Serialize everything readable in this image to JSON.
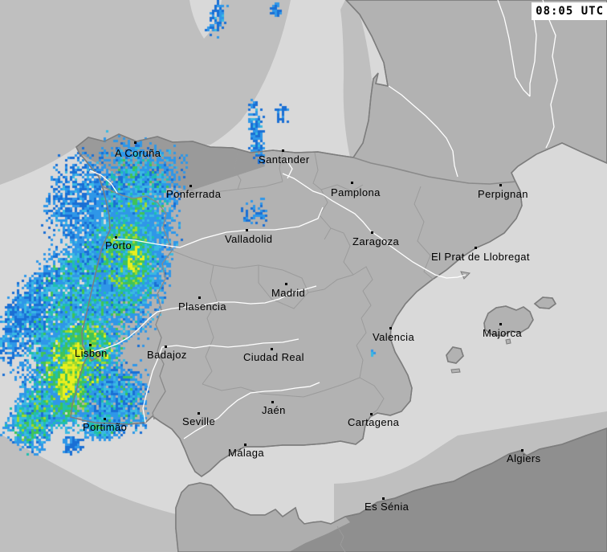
{
  "clock": {
    "text": "08:05 UTC"
  },
  "colors": {
    "sea_outside": "#bfbfbf",
    "sea_covered": "#d9d9d9",
    "land": "#b2b2b2",
    "land_outside": "#9a9a9a",
    "africa_land": "#8f8f8f",
    "africa_covered": "#aeaeae",
    "coastline": "#7d7d7d",
    "region_border": "#9b9b9b",
    "country_border": "#8a8a8a",
    "river": "#ffffff",
    "label_text": "#000000",
    "clock_bg": "#ffffff",
    "clock_text": "#000000"
  },
  "map": {
    "cities": [
      {
        "name": "A Coruña",
        "marker": [
          168,
          177
        ],
        "label": [
          143,
          184
        ]
      },
      {
        "name": "Santander",
        "marker": [
          352,
          187
        ],
        "label": [
          322,
          192
        ]
      },
      {
        "name": "Ponferrada",
        "marker": [
          237,
          231
        ],
        "label": [
          207,
          235
        ]
      },
      {
        "name": "Pamplona",
        "marker": [
          438,
          227
        ],
        "label": [
          412,
          233
        ]
      },
      {
        "name": "Perpignan",
        "marker": [
          623,
          230
        ],
        "label": [
          595,
          235
        ]
      },
      {
        "name": "Valladolid",
        "marker": [
          307,
          286
        ],
        "label": [
          280,
          291
        ]
      },
      {
        "name": "Zaragoza",
        "marker": [
          463,
          289
        ],
        "label": [
          439,
          294
        ]
      },
      {
        "name": "El Prat de Llobregat",
        "marker": [
          592,
          308
        ],
        "label": [
          537,
          313
        ]
      },
      {
        "name": "Porto",
        "marker": [
          144,
          295
        ],
        "label": [
          131,
          299
        ]
      },
      {
        "name": "Madrid",
        "marker": [
          356,
          353
        ],
        "label": [
          338,
          358
        ]
      },
      {
        "name": "Plasencia",
        "marker": [
          248,
          370
        ],
        "label": [
          222,
          375
        ]
      },
      {
        "name": "Valencia",
        "marker": [
          486,
          408
        ],
        "label": [
          464,
          413
        ]
      },
      {
        "name": "Majorca",
        "marker": [
          623,
          403
        ],
        "label": [
          601,
          408
        ]
      },
      {
        "name": "Lisbon",
        "marker": [
          112,
          429
        ],
        "label": [
          93,
          433
        ]
      },
      {
        "name": "Badajoz",
        "marker": [
          206,
          431
        ],
        "label": [
          183,
          435
        ]
      },
      {
        "name": "Ciudad Real",
        "marker": [
          338,
          434
        ],
        "label": [
          303,
          438
        ]
      },
      {
        "name": "Jaén",
        "marker": [
          339,
          500
        ],
        "label": [
          326,
          504
        ]
      },
      {
        "name": "Cartagena",
        "marker": [
          462,
          515
        ],
        "label": [
          433,
          519
        ]
      },
      {
        "name": "Portimão",
        "marker": [
          130,
          521
        ],
        "label": [
          103,
          525
        ]
      },
      {
        "name": "Seville",
        "marker": [
          247,
          514
        ],
        "label": [
          227,
          518
        ]
      },
      {
        "name": "Málaga",
        "marker": [
          305,
          553
        ],
        "label": [
          284,
          557
        ]
      },
      {
        "name": "Algiers",
        "marker": [
          650,
          560
        ],
        "label": [
          631,
          564
        ]
      },
      {
        "name": "Es Sénia",
        "marker": [
          477,
          620
        ],
        "label": [
          454,
          624
        ]
      }
    ]
  },
  "precipitation": {
    "cell_size": 3,
    "palette": [
      "#1a6fd4",
      "#2f97e8",
      "#3ab9e2",
      "#1fbfae",
      "#41c356",
      "#9fd92e",
      "#e9ef1e"
    ],
    "blobs_format": "[cx, cy, rx, ry, rot_deg, n_samples, palette_weights[7]]",
    "blobs": [
      [
        165,
        248,
        60,
        80,
        15,
        2400,
        [
          2,
          3,
          4,
          2,
          1,
          0,
          0
        ]
      ],
      [
        95,
        245,
        40,
        62,
        18,
        650,
        [
          4,
          3,
          1,
          0,
          0,
          0,
          0
        ]
      ],
      [
        165,
        272,
        30,
        42,
        10,
        700,
        [
          0,
          1,
          2,
          3,
          3,
          1,
          0
        ]
      ],
      [
        145,
        332,
        70,
        90,
        15,
        4200,
        [
          1,
          2,
          4,
          3,
          2,
          0,
          0
        ]
      ],
      [
        155,
        318,
        42,
        58,
        10,
        1900,
        [
          0,
          1,
          2,
          3,
          4,
          2,
          0
        ]
      ],
      [
        167,
        322,
        13,
        24,
        5,
        420,
        [
          0,
          0,
          0,
          1,
          2,
          3,
          4
        ]
      ],
      [
        75,
        385,
        56,
        108,
        27,
        2400,
        [
          2,
          3,
          4,
          2,
          1,
          0,
          0
        ]
      ],
      [
        25,
        392,
        26,
        66,
        25,
        550,
        [
          4,
          3,
          2,
          0,
          0,
          0,
          0
        ]
      ],
      [
        95,
        455,
        54,
        84,
        20,
        3400,
        [
          0,
          1,
          2,
          3,
          4,
          2,
          1
        ]
      ],
      [
        86,
        462,
        17,
        58,
        18,
        950,
        [
          0,
          0,
          0,
          0,
          1,
          3,
          5
        ]
      ],
      [
        42,
        516,
        32,
        48,
        25,
        1100,
        [
          1,
          2,
          3,
          3,
          2,
          1,
          0
        ]
      ],
      [
        145,
        496,
        42,
        48,
        0,
        950,
        [
          3,
          3,
          3,
          1,
          1,
          0,
          0
        ]
      ],
      [
        126,
        528,
        24,
        20,
        0,
        520,
        [
          1,
          2,
          4,
          2,
          1,
          0,
          0
        ]
      ],
      [
        90,
        552,
        15,
        12,
        0,
        90,
        [
          4,
          3,
          1,
          0,
          0,
          0,
          0
        ]
      ],
      [
        318,
        162,
        10,
        44,
        -4,
        170,
        [
          4,
          3,
          1,
          0,
          0,
          0,
          0
        ]
      ],
      [
        268,
        20,
        12,
        28,
        10,
        90,
        [
          4,
          3,
          1,
          0,
          0,
          0,
          0
        ]
      ],
      [
        342,
        10,
        7,
        12,
        0,
        32,
        [
          4,
          3,
          0,
          0,
          0,
          0,
          0
        ]
      ],
      [
        350,
        140,
        8,
        14,
        0,
        26,
        [
          4,
          2,
          0,
          0,
          0,
          0,
          0
        ]
      ],
      [
        315,
        262,
        20,
        18,
        0,
        55,
        [
          4,
          2,
          0,
          0,
          0,
          0,
          0
        ]
      ],
      [
        462,
        437,
        4,
        4,
        0,
        7,
        [
          0,
          0,
          5,
          0,
          0,
          0,
          0
        ]
      ],
      [
        176,
        519,
        5,
        5,
        0,
        10,
        [
          0,
          2,
          4,
          0,
          0,
          0,
          0
        ]
      ]
    ]
  }
}
